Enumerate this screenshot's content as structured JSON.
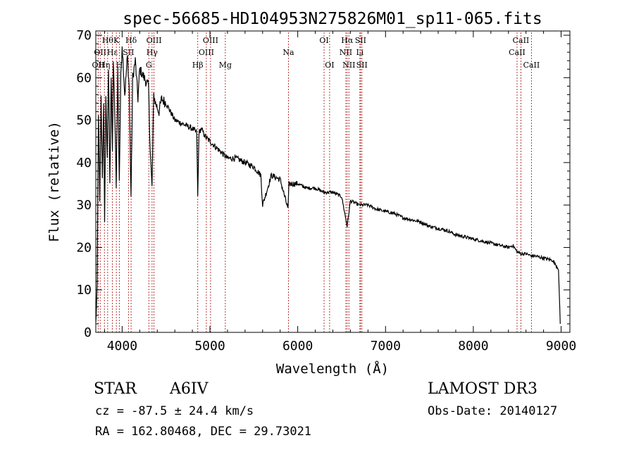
{
  "chart_data": {
    "type": "line",
    "title": "spec-56685-HD104953N275826M01_sp11-065.fits",
    "xlabel": "Wavelength (Å)",
    "ylabel": "Flux (relative)",
    "xlim": [
      3700,
      9100
    ],
    "ylim": [
      0,
      71
    ],
    "xticks": [
      4000,
      5000,
      6000,
      7000,
      8000,
      9000
    ],
    "yticks": [
      0,
      10,
      20,
      30,
      40,
      50,
      60,
      70
    ],
    "line_color": "#000000",
    "marker_color": "#b22222",
    "series": [
      {
        "name": "spectrum",
        "x": [
          3700,
          3715,
          3730,
          3745,
          3760,
          3775,
          3790,
          3800,
          3815,
          3830,
          3845,
          3860,
          3875,
          3889,
          3900,
          3915,
          3933,
          3950,
          3968,
          3985,
          4000,
          4030,
          4060,
          4080,
          4101,
          4120,
          4150,
          4180,
          4200,
          4250,
          4300,
          4320,
          4340,
          4360,
          4380,
          4420,
          4450,
          4500,
          4550,
          4600,
          4700,
          4800,
          4850,
          4861,
          4875,
          4900,
          4950,
          5000,
          5100,
          5200,
          5300,
          5400,
          5500,
          5580,
          5600,
          5700,
          5800,
          5890,
          5900,
          6000,
          6100,
          6200,
          6300,
          6400,
          6500,
          6563,
          6600,
          6700,
          6800,
          6900,
          7000,
          7100,
          7200,
          7300,
          7400,
          7500,
          7600,
          7700,
          7800,
          7900,
          8000,
          8100,
          8200,
          8300,
          8400,
          8450,
          8498,
          8542,
          8600,
          8662,
          8700,
          8800,
          8900,
          8970,
          8990
        ],
        "y": [
          2,
          10,
          52,
          30,
          55,
          37,
          53,
          27,
          56,
          40,
          62,
          36,
          60,
          42,
          64,
          52,
          35,
          62,
          36,
          60,
          68,
          56,
          65,
          58,
          32,
          60,
          64,
          55,
          62,
          60,
          58,
          43,
          34,
          56,
          54,
          52,
          55,
          54,
          52,
          50,
          49,
          48,
          47,
          32,
          47,
          48,
          46,
          45,
          43,
          41,
          41,
          40,
          39,
          37,
          30,
          37,
          36,
          29,
          35,
          35,
          34,
          34,
          33,
          33,
          32,
          25,
          31,
          30,
          30,
          29,
          28.5,
          28,
          27,
          26.5,
          26,
          25,
          24.5,
          24,
          23,
          22.5,
          22,
          21.5,
          21,
          20.5,
          20,
          20.5,
          19,
          18.5,
          18.5,
          18,
          18,
          17.5,
          17,
          15,
          2
        ]
      }
    ],
    "lines": [
      {
        "wl": 3727,
        "label": "OII",
        "row": 2
      },
      {
        "wl": 3750,
        "label": "OII",
        "row": 1
      },
      {
        "wl": 3798,
        "label": "Hη",
        "row": 2
      },
      {
        "wl": 3835,
        "label": "Hθ",
        "row": 0
      },
      {
        "wl": 3889,
        "label": "Hε",
        "row": 1
      },
      {
        "wl": 3934,
        "label": "K",
        "row": 0
      },
      {
        "wl": 3968,
        "label": "H",
        "row": 2
      },
      {
        "wl": 4072,
        "label": "SII",
        "row": 1
      },
      {
        "wl": 4102,
        "label": "Hδ",
        "row": 0
      },
      {
        "wl": 4304,
        "label": "G",
        "row": 2
      },
      {
        "wl": 4341,
        "label": "Hγ",
        "row": 1
      },
      {
        "wl": 4363,
        "label": "OIII",
        "row": 0
      },
      {
        "wl": 4861,
        "label": "Hβ",
        "row": 2
      },
      {
        "wl": 4959,
        "label": "OIII",
        "row": 1
      },
      {
        "wl": 5007,
        "label": "OIII",
        "row": 0
      },
      {
        "wl": 5175,
        "label": "Mg",
        "row": 2
      },
      {
        "wl": 5894,
        "label": "Na",
        "row": 1
      },
      {
        "wl": 6300,
        "label": "OI",
        "row": 0
      },
      {
        "wl": 6363,
        "label": "OI",
        "row": 2
      },
      {
        "wl": 6548,
        "label": "NII",
        "row": 1
      },
      {
        "wl": 6563,
        "label": "Hα",
        "row": 0
      },
      {
        "wl": 6583,
        "label": "NII",
        "row": 2
      },
      {
        "wl": 6708,
        "label": "Li",
        "row": 1
      },
      {
        "wl": 6716,
        "label": "SII",
        "row": 0
      },
      {
        "wl": 6731,
        "label": "SII",
        "row": 2
      },
      {
        "wl": 8498,
        "label": "CaII",
        "row": 1
      },
      {
        "wl": 8542,
        "label": "CaII",
        "row": 0
      },
      {
        "wl": 8662,
        "label": "CaII",
        "row": 2
      }
    ]
  },
  "info": {
    "object_class": "STAR",
    "subclass": "A6IV",
    "velocity": "cz = -87.5 ± 24.4 km/s",
    "coords": "RA = 162.80468, DEC =  29.73021",
    "survey": "LAMOST DR3",
    "obs_date": "Obs-Date: 20140127"
  }
}
